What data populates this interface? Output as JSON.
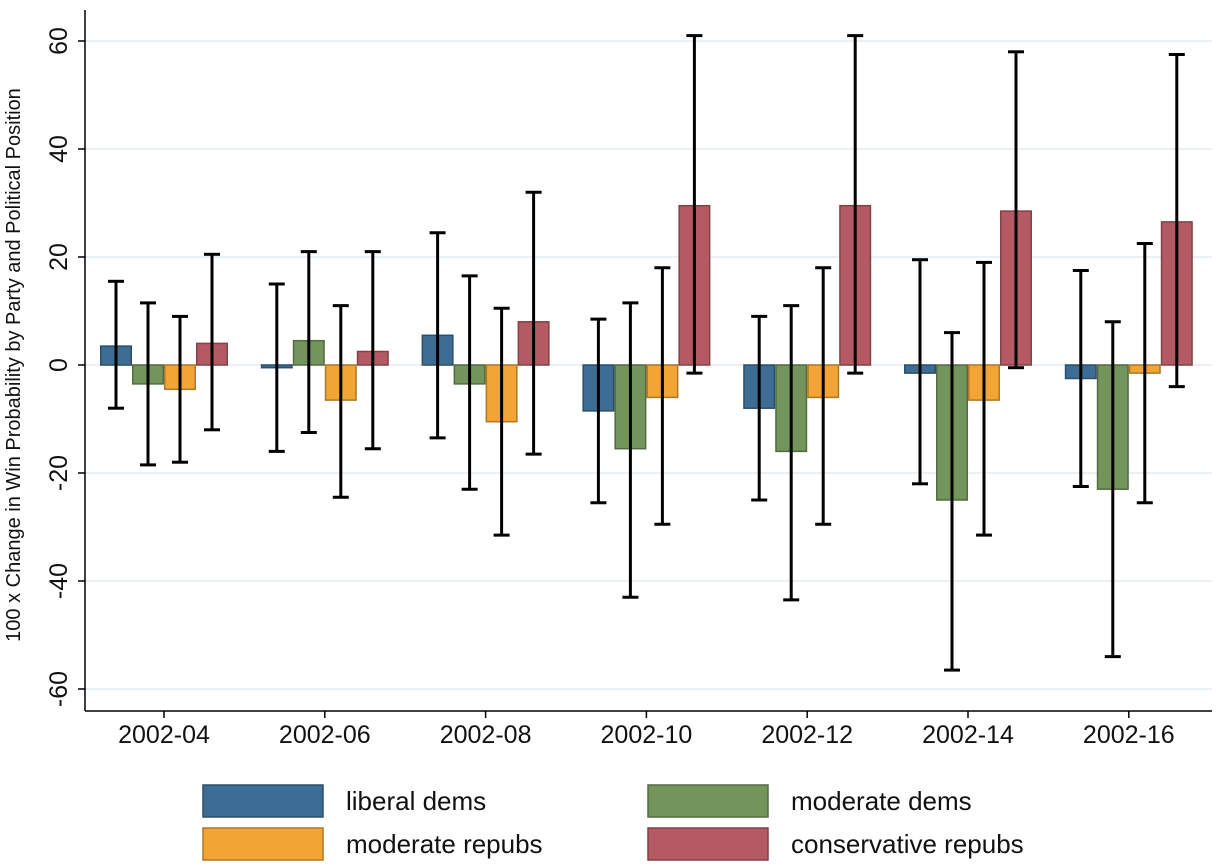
{
  "chart_data": {
    "type": "bar",
    "ylabel": "100 x Change in Win Probability by Party and Political Position",
    "xlabel": "",
    "ylim": [
      -65,
      65
    ],
    "yticks": [
      -60,
      -40,
      -20,
      0,
      20,
      40,
      60
    ],
    "ytick_labels": [
      "-60",
      "-40",
      "-20",
      "0",
      "20",
      "40",
      "60"
    ],
    "grid": true,
    "legend_position": "bottom",
    "categories": [
      "2002-04",
      "2002-06",
      "2002-08",
      "2002-10",
      "2002-12",
      "2002-14",
      "2002-16"
    ],
    "series": [
      {
        "name": "liberal dems",
        "color": "#3d6d94",
        "values": [
          3.5,
          -0.5,
          5.5,
          -8.5,
          -8,
          -1.5,
          -2.5
        ],
        "ci_low": [
          -8,
          -16,
          -13.5,
          -25.5,
          -25,
          -22,
          -22.5
        ],
        "ci_high": [
          15.5,
          15,
          24.5,
          8.5,
          9,
          19.5,
          17.5
        ]
      },
      {
        "name": "moderate dems",
        "color": "#73955b",
        "values": [
          -3.5,
          4.5,
          -3.5,
          -15.5,
          -16,
          -25,
          -23
        ],
        "ci_low": [
          -18.5,
          -12.5,
          -23,
          -43,
          -43.5,
          -56.5,
          -54
        ],
        "ci_high": [
          11.5,
          21,
          16.5,
          11.5,
          11,
          6,
          8
        ]
      },
      {
        "name": "moderate repubs",
        "color": "#f2a535",
        "values": [
          -4.5,
          -6.5,
          -10.5,
          -6,
          -6,
          -6.5,
          -1.5
        ],
        "ci_low": [
          -18,
          -24.5,
          -31.5,
          -29.5,
          -29.5,
          -31.5,
          -25.5
        ],
        "ci_high": [
          9,
          11,
          10.5,
          18,
          18,
          19,
          22.5
        ]
      },
      {
        "name": "conservative repubs",
        "color": "#b55a63",
        "values": [
          4,
          2.5,
          8,
          29.5,
          29.5,
          28.5,
          26.5
        ],
        "ci_low": [
          -12,
          -15.5,
          -16.5,
          -1.5,
          -1.5,
          -0.5,
          -4
        ],
        "ci_high": [
          20.5,
          21,
          32,
          61,
          61,
          58,
          57.5
        ]
      }
    ]
  }
}
